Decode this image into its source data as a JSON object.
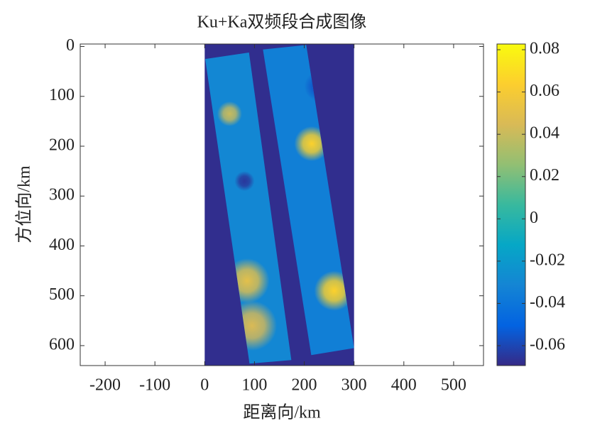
{
  "chart_data": {
    "type": "image",
    "title": "Ku+Ka双频段合成图像",
    "x_label": "距离向/km",
    "y_label": "方位向/km",
    "xlim": [
      -250,
      560
    ],
    "ylim": [
      -5,
      640
    ],
    "xticks": [
      -200,
      -100,
      0,
      100,
      200,
      300,
      400,
      500
    ],
    "yticks": [
      0,
      100,
      200,
      300,
      400,
      500,
      600
    ],
    "clim": [
      -0.0694,
      0.0827
    ],
    "cticks": [
      -0.06,
      -0.04,
      -0.02,
      0,
      0.02,
      0.04,
      0.06,
      0.08
    ],
    "colormap": [
      "#352a87",
      "#0363e1",
      "#1485d4",
      "#06a7c6",
      "#38b99e",
      "#92bf73",
      "#d9ba56",
      "#fcce2e",
      "#f9fb0e"
    ],
    "background": {
      "x": [
        0,
        300
      ],
      "y": [
        -5,
        640
      ],
      "value": -0.068
    },
    "swaths": [
      {
        "corners_x": [
          1,
          89,
          174,
          90
        ],
        "corners_y": [
          25,
          12,
          629,
          636
        ],
        "value": -0.03
      },
      {
        "corners_x": [
          117,
          204,
          300,
          214
        ],
        "corners_y": [
          6,
          -3,
          605,
          619
        ],
        "value": -0.035
      }
    ],
    "spots": [
      {
        "x": 50,
        "y": 135,
        "value": 0.04,
        "radius": 25
      },
      {
        "x": 80,
        "y": 270,
        "value": -0.065,
        "radius": 20
      },
      {
        "x": 215,
        "y": 195,
        "value": 0.065,
        "radius": 35
      },
      {
        "x": 85,
        "y": 470,
        "value": 0.05,
        "radius": 45
      },
      {
        "x": 95,
        "y": 560,
        "value": 0.045,
        "radius": 50
      },
      {
        "x": 260,
        "y": 490,
        "value": 0.065,
        "radius": 40
      },
      {
        "x": 230,
        "y": 80,
        "value": -0.055,
        "radius": 30
      }
    ]
  }
}
